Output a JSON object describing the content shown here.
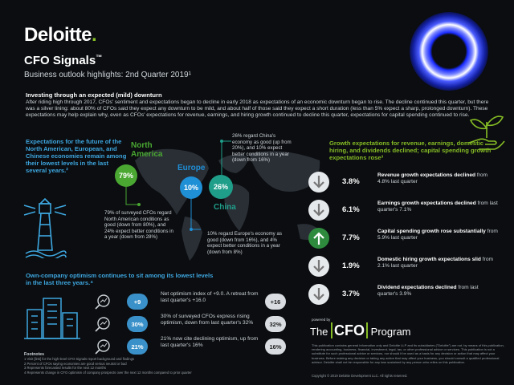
{
  "brand": {
    "logo": "Deloitte",
    "logo_dot": "."
  },
  "header": {
    "title": "CFO Signals",
    "title_tm": "™",
    "subtitle": "Business outlook highlights: 2nd Quarter 2019¹"
  },
  "intro": {
    "heading": "Investing through an expected (mild) downturn",
    "body": "After riding high through 2017, CFOs' sentiment and expectations began to decline in early 2018 as expectations of an economic downturn began to rise. The decline continued this quarter, but there was a silver lining: about 80% of CFOs said they expect any downturn to be mild, and about half of those said they expect a short duration (less than 5% expect a sharp, prolonged downturn). These expectations may help explain why, even as CFOs' expectations for revenue, earnings, and hiring growth continued to decline this quarter, expectations for capital spending continued to rise."
  },
  "regions_section": {
    "heading": "Expectations for the future of the North American, European, and Chinese economies remain among their lowest levels in the last several years.²",
    "north_america": {
      "label_1": "North",
      "label_2": "America",
      "value": "79%",
      "note": "79% of surveyed CFOs regard North American conditions as good (down from 80%), and 24% expect better conditions in a year (down from 28%)",
      "note_bold": "79%"
    },
    "europe": {
      "label": "Europe",
      "value": "10%",
      "note": "10% regard Europe's economy as good (down from 16%), and 4% expect better conditions in a year (down from 8%)",
      "note_bold": "10%"
    },
    "china": {
      "label": "China",
      "value": "26%",
      "note": "26% regard China's economy as good (up from 20%), and 10% expect better conditions in a year (down from 16%)",
      "note_bold": "26%"
    },
    "colors": {
      "north_america": "#4aa832",
      "europe": "#1f8fd6",
      "china": "#1f9e8a"
    }
  },
  "growth_section": {
    "heading": "Growth expectations for revenue, earnings, domestic hiring, and dividends declined; capital spending growth expectations rose³",
    "items": [
      {
        "value": "3.8%",
        "direction": "down",
        "bold": "Revenue growth expectations declined",
        "rest": " from 4.8% last quarter"
      },
      {
        "value": "6.1%",
        "direction": "down",
        "bold": "Earnings growth expectations declined",
        "rest": " from last quarter's 7.1%"
      },
      {
        "value": "7.7%",
        "direction": "up",
        "bold": "Capital spending growth rose substantially",
        "rest": " from 5.9% last quarter"
      },
      {
        "value": "1.9%",
        "direction": "down",
        "bold": "Domestic hiring growth expectations slid",
        "rest": " from 2.1% last quarter"
      },
      {
        "value": "3.7%",
        "direction": "down",
        "bold": "Dividend expectations declined",
        "rest": " from last quarter's 3.9%"
      }
    ]
  },
  "optimism_section": {
    "heading": "Own-company optimism continues to sit among its lowest levels in the last three years.⁴",
    "items": [
      {
        "current": "+9",
        "text": "Net optimism index of +9.0. A retreat from last quarter's +16.0",
        "previous": "+16"
      },
      {
        "current": "30%",
        "text": "30% of surveyed CFOs express rising optimism, down from last quarter's 32%",
        "previous": "32%"
      },
      {
        "current": "21%",
        "text": "21% now cite declining optimism, up from last quarter's 16%",
        "previous": "16%"
      }
    ]
  },
  "footnotes": {
    "heading": "Footnotes",
    "lines": [
      "1 Visit [link] for the high-level CFO Signals report background and findings",
      "2 Percent of CFOs saying economies are good versus neutral or bad",
      "3 Represents forecasted results for the next 12 months",
      "4 Represents change in CFO optimism of company prospects over the next 12 months compared to prior quarter"
    ]
  },
  "program": {
    "powered_by": "powered by",
    "the": "The",
    "cfo": "CFO",
    "program": "Program"
  },
  "disclaimer": "This publication contains general information only and Deloitte LLP and its subsidiaries (\"Deloitte\") are not, by means of this publication, rendering accounting, business, financial, investment, legal, tax, or other professional advice or services. This publication is not a substitute for such professional advice or services, nor should it be used as a basis for any decision or action that may affect your business. Before making any decision or taking any action that may affect your business, you should consult a qualified professional advisor. Deloitte shall not be responsible for any loss sustained by any person who relies on this publication.",
  "copyright": "Copyright © 2019 Deloitte Development LLC. All rights reserved."
}
